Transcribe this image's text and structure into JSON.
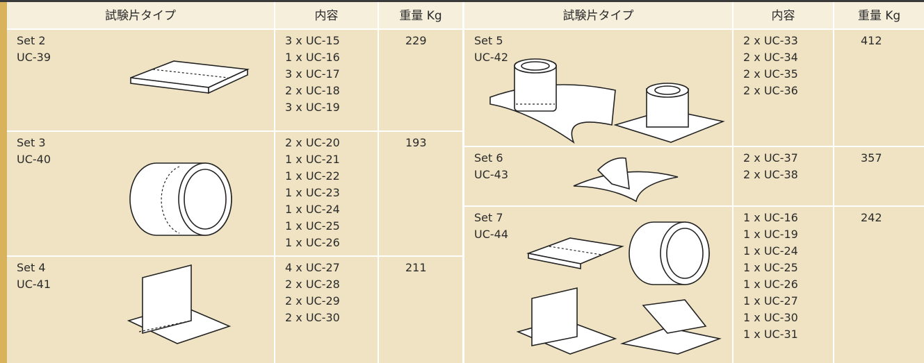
{
  "tables": [
    {
      "headers": [
        "試験片タイプ",
        "内容",
        "重量 Kg"
      ],
      "rows": [
        {
          "set": "Set 2",
          "code": "UC-39",
          "contents": [
            "3 x UC-15",
            "1 x UC-16",
            "3 x UC-17",
            "2 x UC-18",
            "3 x UC-19"
          ],
          "weight": 229
        },
        {
          "set": "Set 3",
          "code": "UC-40",
          "contents": [
            "2 x UC-20",
            "1 x UC-21",
            "1 x UC-22",
            "1 x UC-23",
            "1 x UC-24",
            "1 x UC-25",
            "1 x UC-26"
          ],
          "weight": 193
        },
        {
          "set": "Set 4",
          "code": "UC-41",
          "contents": [
            "4 x UC-27",
            "2 x UC-28",
            "2 x UC-29",
            "2 x UC-30"
          ],
          "weight": 211
        }
      ]
    },
    {
      "headers": [
        "試験片タイプ",
        "内容",
        "重量 Kg"
      ],
      "rows": [
        {
          "set": "Set 5",
          "code": "UC-42",
          "contents": [
            "2 x UC-33",
            "2 x UC-34",
            "2 x UC-35",
            "2 x UC-36"
          ],
          "weight": 412
        },
        {
          "set": "Set 6",
          "code": "UC-43",
          "contents": [
            "2 x UC-37",
            "2 x UC-38"
          ],
          "weight": 357
        },
        {
          "set": "Set 7",
          "code": "UC-44",
          "contents": [
            "1 x UC-16",
            "1 x UC-19",
            "1 x UC-24",
            "1 x UC-25",
            "1 x UC-26",
            "1 x UC-27",
            "1 x UC-30",
            "1 x UC-31"
          ],
          "weight": 242
        }
      ]
    }
  ]
}
